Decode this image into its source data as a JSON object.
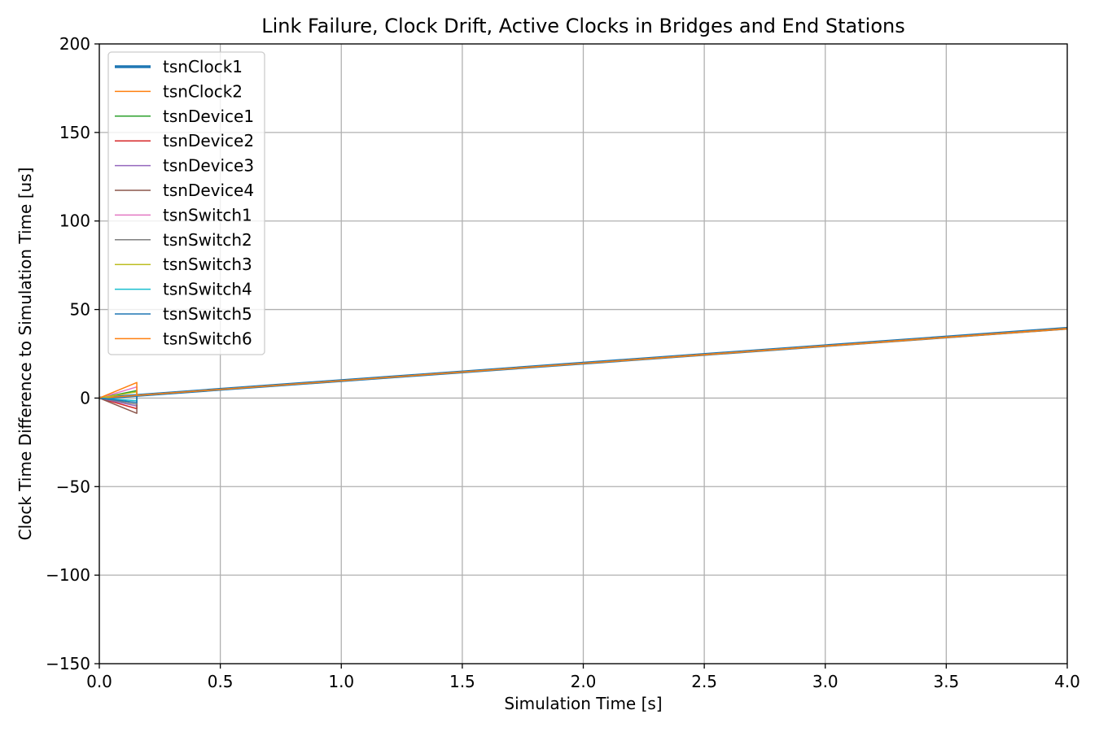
{
  "chart_data": {
    "type": "line",
    "title": "Link Failure, Clock Drift, Active Clocks in Bridges and End Stations",
    "xlabel": "Simulation Time [s]",
    "ylabel": "Clock Time Difference to Simulation Time [us]",
    "xlim": [
      0,
      4
    ],
    "ylim": [
      -150,
      200
    ],
    "xticks": [
      0,
      0.5,
      1,
      1.5,
      2,
      2.5,
      3,
      3.5,
      4
    ],
    "xtick_labels": [
      "0.0",
      "0.5",
      "1.0",
      "1.5",
      "2.0",
      "2.5",
      "3.0",
      "3.5",
      "4.0"
    ],
    "yticks": [
      -150,
      -100,
      -50,
      0,
      50,
      100,
      150,
      200
    ],
    "ytick_labels": [
      "−150",
      "−100",
      "−50",
      "0",
      "50",
      "100",
      "150",
      "200"
    ],
    "grid": true,
    "legend_position": "top-left",
    "series": [
      {
        "name": "tsnClock1",
        "color": "#1f77b4",
        "width": 3.5,
        "x": [
          0,
          4
        ],
        "y": [
          0,
          39.4
        ]
      },
      {
        "name": "tsnClock2",
        "color": "#ff7f0e",
        "width": 1.5,
        "x": [
          0,
          4
        ],
        "y": [
          0,
          39.0
        ]
      },
      {
        "name": "tsnDevice1",
        "color": "#2ca02c",
        "width": 1.5,
        "x": [
          0,
          0.155,
          0.155,
          4
        ],
        "y": [
          0,
          4.2,
          1.5,
          39.3
        ]
      },
      {
        "name": "tsnDevice2",
        "color": "#d62728",
        "width": 1.5,
        "x": [
          0,
          0.155,
          0.155,
          4
        ],
        "y": [
          0,
          -6.0,
          1.5,
          39.3
        ]
      },
      {
        "name": "tsnDevice3",
        "color": "#9467bd",
        "width": 1.5,
        "x": [
          0,
          0.155,
          0.155,
          4
        ],
        "y": [
          0,
          -4.5,
          1.5,
          39.3
        ]
      },
      {
        "name": "tsnDevice4",
        "color": "#8c564b",
        "width": 1.5,
        "x": [
          0,
          0.155,
          0.155,
          4
        ],
        "y": [
          0,
          -8.6,
          1.5,
          39.3
        ]
      },
      {
        "name": "tsnSwitch1",
        "color": "#e377c2",
        "width": 1.5,
        "x": [
          0,
          0.155,
          0.155,
          4
        ],
        "y": [
          0,
          6.3,
          1.5,
          39.3
        ]
      },
      {
        "name": "tsnSwitch2",
        "color": "#7f7f7f",
        "width": 1.5,
        "x": [
          0,
          0.155,
          0.155,
          4
        ],
        "y": [
          0,
          -3.5,
          1.5,
          39.3
        ]
      },
      {
        "name": "tsnSwitch3",
        "color": "#bcbd22",
        "width": 1.5,
        "x": [
          0,
          0.155,
          0.155,
          4
        ],
        "y": [
          0,
          3.5,
          1.5,
          39.3
        ]
      },
      {
        "name": "tsnSwitch4",
        "color": "#17becf",
        "width": 1.5,
        "x": [
          0,
          0.155,
          0.155,
          4
        ],
        "y": [
          0,
          -1.5,
          1.5,
          39.3
        ]
      },
      {
        "name": "tsnSwitch5",
        "color": "#1f77b4",
        "width": 1.5,
        "x": [
          0,
          0.155,
          0.155,
          4
        ],
        "y": [
          0,
          -2.5,
          1.5,
          39.3
        ]
      },
      {
        "name": "tsnSwitch6",
        "color": "#ff7f0e",
        "width": 1.5,
        "x": [
          0,
          0.155,
          0.155,
          4
        ],
        "y": [
          0,
          8.8,
          1.5,
          39.3
        ]
      }
    ]
  }
}
